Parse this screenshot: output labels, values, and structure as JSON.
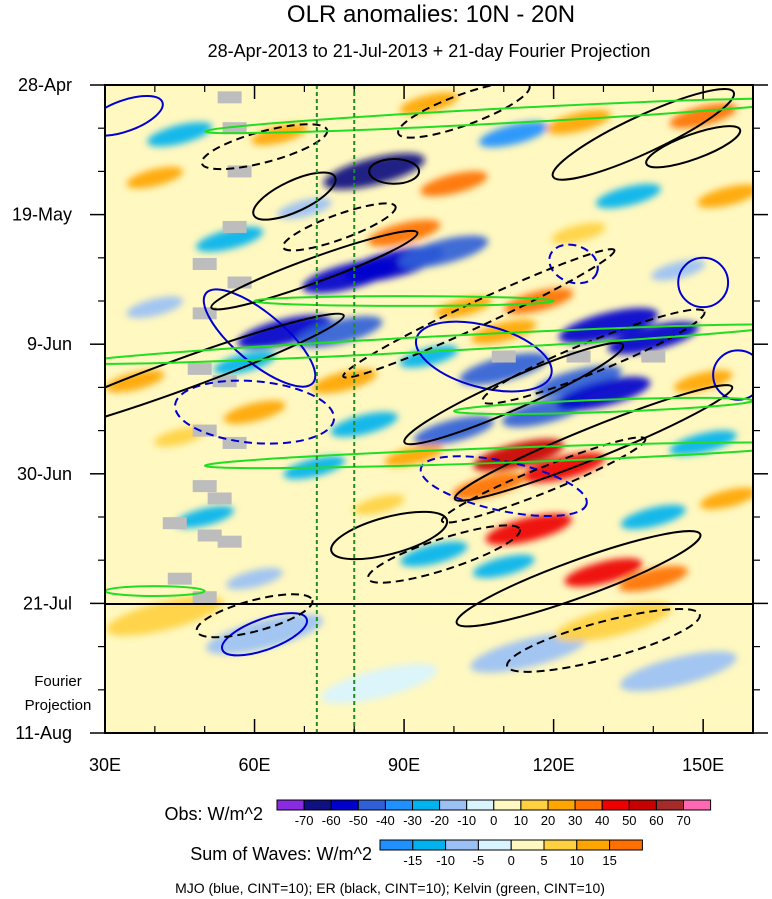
{
  "chart_data": {
    "type": "heatmap",
    "title": "OLR anomalies: 10N - 20N",
    "subtitle": "28-Apr-2013 to 21-Jul-2013 + 21-day Fourier Projection",
    "x_axis": {
      "range": [
        30,
        160
      ],
      "ticks": [
        30,
        60,
        90,
        120,
        150
      ],
      "tick_labels": [
        "30E",
        "60E",
        "90E",
        "120E",
        "150E"
      ]
    },
    "y_axis": {
      "range_days": [
        0,
        105
      ],
      "ticks_days": [
        0,
        21,
        42,
        63,
        84,
        105
      ],
      "tick_labels": [
        "28-Apr",
        "19-May",
        "9-Jun",
        "30-Jun",
        "21-Jul",
        "11-Aug"
      ],
      "projection_label_line1": "Fourier",
      "projection_label_line2": "Projection",
      "projection_start_day": 84
    },
    "reference_longitudes": [
      72.5,
      80
    ],
    "obs_legend": {
      "label": "Obs: W/m^2",
      "levels": [
        -70,
        -60,
        -50,
        -40,
        -30,
        -20,
        -10,
        0,
        10,
        20,
        30,
        40,
        50,
        60,
        70
      ],
      "colors": [
        "#8a2be2",
        "#101080",
        "#0000cd",
        "#3060d8",
        "#1e90ff",
        "#00b2ee",
        "#9ac0f5",
        "#d8f4ff",
        "#fff8c0",
        "#ffd040",
        "#ffa500",
        "#ff7000",
        "#ee0000",
        "#c80000",
        "#a52a2a",
        "#ff69b4"
      ]
    },
    "waves_legend": {
      "label": "Sum of Waves: W/m^2",
      "levels": [
        -15,
        -10,
        -5,
        0,
        5,
        10,
        15
      ],
      "colors": [
        "#1e90ff",
        "#00b2ee",
        "#9ac0f5",
        "#d8f4ff",
        "#fff8c0",
        "#ffd040",
        "#ffa500",
        "#ff7000"
      ]
    },
    "footer": "MJO (blue, CINT=10); ER (black, CINT=10); Kelvin (green, CINT=10)",
    "features": [
      {
        "type": "obs",
        "lon": 84,
        "day": 14,
        "value": -62
      },
      {
        "type": "obs",
        "lon": 88,
        "day": 29,
        "value": -60
      },
      {
        "type": "obs",
        "lon": 79,
        "day": 31,
        "value": -55
      },
      {
        "type": "obs",
        "lon": 98,
        "day": 27,
        "value": -50
      },
      {
        "type": "obs",
        "lon": 66,
        "day": 40,
        "value": -55
      },
      {
        "type": "obs",
        "lon": 77,
        "day": 40,
        "value": -48
      },
      {
        "type": "obs",
        "lon": 131,
        "day": 39,
        "value": -60
      },
      {
        "type": "obs",
        "lon": 140,
        "day": 41,
        "value": -52
      },
      {
        "type": "obs",
        "lon": 125,
        "day": 48,
        "value": -48
      },
      {
        "type": "obs",
        "lon": 110,
        "day": 46,
        "value": -50
      },
      {
        "type": "obs",
        "lon": 118,
        "day": 53,
        "value": -45
      },
      {
        "type": "obs",
        "lon": 130,
        "day": 50,
        "value": -55
      },
      {
        "type": "obs",
        "lon": 100,
        "day": 56,
        "value": -42
      },
      {
        "type": "obs",
        "lon": 82,
        "day": 55,
        "value": -30
      },
      {
        "type": "obs",
        "lon": 58,
        "day": 45,
        "value": -25
      },
      {
        "type": "obs",
        "lon": 45,
        "day": 8,
        "value": -28
      },
      {
        "type": "obs",
        "lon": 55,
        "day": 25,
        "value": -30
      },
      {
        "type": "obs",
        "lon": 150,
        "day": 58,
        "value": -30
      },
      {
        "type": "obs",
        "lon": 112,
        "day": 8,
        "value": -32
      },
      {
        "type": "obs",
        "lon": 135,
        "day": 18,
        "value": -28
      },
      {
        "type": "obs",
        "lon": 96,
        "day": 76,
        "value": -30
      },
      {
        "type": "obs",
        "lon": 140,
        "day": 70,
        "value": -28
      },
      {
        "type": "obs",
        "lon": 50,
        "day": 70,
        "value": -22
      },
      {
        "type": "obs",
        "lon": 72,
        "day": 62,
        "value": -25
      },
      {
        "type": "obs",
        "lon": 110,
        "day": 78,
        "value": -25
      },
      {
        "type": "obs",
        "lon": 95,
        "day": 44,
        "value": -22
      },
      {
        "type": "obs",
        "lon": 40,
        "day": 36,
        "value": -20
      },
      {
        "type": "obs",
        "lon": 60,
        "day": 80,
        "value": -20
      },
      {
        "type": "obs",
        "lon": 113,
        "day": 60,
        "value": 52
      },
      {
        "type": "obs",
        "lon": 122,
        "day": 62,
        "value": 45
      },
      {
        "type": "obs",
        "lon": 115,
        "day": 72,
        "value": 48
      },
      {
        "type": "obs",
        "lon": 130,
        "day": 79,
        "value": 40
      },
      {
        "type": "obs",
        "lon": 140,
        "day": 80,
        "value": 32
      },
      {
        "type": "obs",
        "lon": 107,
        "day": 65,
        "value": 35
      },
      {
        "type": "obs",
        "lon": 90,
        "day": 24,
        "value": 35
      },
      {
        "type": "obs",
        "lon": 117,
        "day": 35,
        "value": 32
      },
      {
        "type": "obs",
        "lon": 110,
        "day": 40,
        "value": 28
      },
      {
        "type": "obs",
        "lon": 100,
        "day": 16,
        "value": 30
      },
      {
        "type": "obs",
        "lon": 125,
        "day": 6,
        "value": 28
      },
      {
        "type": "obs",
        "lon": 150,
        "day": 5,
        "value": 30
      },
      {
        "type": "obs",
        "lon": 155,
        "day": 18,
        "value": 25
      },
      {
        "type": "obs",
        "lon": 78,
        "day": 48,
        "value": 28
      },
      {
        "type": "obs",
        "lon": 92,
        "day": 60,
        "value": 22
      },
      {
        "type": "obs",
        "lon": 60,
        "day": 53,
        "value": 25
      },
      {
        "type": "obs",
        "lon": 40,
        "day": 15,
        "value": 20
      },
      {
        "type": "obs",
        "lon": 36,
        "day": 48,
        "value": 22
      },
      {
        "type": "obs",
        "lon": 65,
        "day": 8,
        "value": 20
      },
      {
        "type": "obs",
        "lon": 150,
        "day": 48,
        "value": 22
      },
      {
        "type": "obs",
        "lon": 95,
        "day": 3,
        "value": 22
      },
      {
        "type": "obs",
        "lon": 155,
        "day": 67,
        "value": 20
      },
      {
        "type": "obs",
        "lon": 85,
        "day": 68,
        "value": 15
      },
      {
        "type": "obs",
        "lon": 102,
        "day": 36,
        "value": 20
      },
      {
        "type": "obs",
        "lon": 45,
        "day": 57,
        "value": 15
      },
      {
        "type": "obs",
        "lon": 125,
        "day": 24,
        "value": 18
      },
      {
        "type": "obs",
        "lon": 145,
        "day": 30,
        "value": -18
      },
      {
        "type": "obs",
        "lon": 70,
        "day": 20,
        "value": -18
      },
      {
        "type": "proj",
        "lon": 62,
        "day": 89,
        "value": -8
      },
      {
        "type": "proj",
        "lon": 115,
        "day": 92,
        "value": -6
      },
      {
        "type": "proj",
        "lon": 145,
        "day": 95,
        "value": -6
      },
      {
        "type": "proj",
        "lon": 85,
        "day": 97,
        "value": -4
      },
      {
        "type": "proj",
        "lon": 42,
        "day": 86,
        "value": 6
      },
      {
        "type": "proj",
        "lon": 132,
        "day": 87,
        "value": 5
      },
      {
        "type": "proj",
        "lon": 100,
        "day": 85,
        "value": 4
      },
      {
        "type": "proj",
        "lon": 155,
        "day": 100,
        "value": 4
      }
    ],
    "missing": [
      {
        "lon": 55,
        "day": 2
      },
      {
        "lon": 56,
        "day": 7
      },
      {
        "lon": 57,
        "day": 14
      },
      {
        "lon": 56,
        "day": 23
      },
      {
        "lon": 50,
        "day": 29
      },
      {
        "lon": 57,
        "day": 32
      },
      {
        "lon": 50,
        "day": 37
      },
      {
        "lon": 49,
        "day": 46
      },
      {
        "lon": 54,
        "day": 48
      },
      {
        "lon": 50,
        "day": 56
      },
      {
        "lon": 56,
        "day": 58
      },
      {
        "lon": 50,
        "day": 65
      },
      {
        "lon": 53,
        "day": 67
      },
      {
        "lon": 44,
        "day": 71
      },
      {
        "lon": 51,
        "day": 73
      },
      {
        "lon": 55,
        "day": 74
      },
      {
        "lon": 45,
        "day": 80
      },
      {
        "lon": 50,
        "day": 83
      },
      {
        "lon": 110,
        "day": 44
      },
      {
        "lon": 125,
        "day": 44
      },
      {
        "lon": 140,
        "day": 44
      }
    ],
    "contours": [
      {
        "wave": "MJO",
        "sign": "+",
        "cx": 34,
        "cy": 5,
        "rx": 8,
        "ry": 2.5,
        "angle": -20
      },
      {
        "wave": "MJO",
        "sign": "+",
        "cx": 61,
        "cy": 41,
        "rx": 14,
        "ry": 4,
        "angle": 40
      },
      {
        "wave": "MJO",
        "sign": "+",
        "cx": 106,
        "cy": 44,
        "rx": 14,
        "ry": 5,
        "angle": 15
      },
      {
        "wave": "MJO",
        "sign": "+",
        "cx": 157,
        "cy": 47,
        "rx": 5,
        "ry": 4,
        "angle": 0
      },
      {
        "wave": "MJO",
        "sign": "+",
        "cx": 150,
        "cy": 32,
        "rx": 5,
        "ry": 4,
        "angle": 0
      },
      {
        "wave": "MJO",
        "sign": "+",
        "cx": 62,
        "cy": 89,
        "rx": 9,
        "ry": 2.5,
        "angle": -20
      },
      {
        "wave": "MJO",
        "sign": "-",
        "cx": 60,
        "cy": 53,
        "rx": 16,
        "ry": 5,
        "angle": 5
      },
      {
        "wave": "MJO",
        "sign": "-",
        "cx": 110,
        "cy": 65,
        "rx": 17,
        "ry": 4,
        "angle": 12
      },
      {
        "wave": "MJO",
        "sign": "-",
        "cx": 124,
        "cy": 29,
        "rx": 5,
        "ry": 3,
        "angle": 20
      },
      {
        "wave": "ER",
        "sign": "+",
        "cx": 45,
        "cy": 47,
        "rx": 35,
        "ry": 2.5,
        "angle": -20
      },
      {
        "wave": "ER",
        "sign": "+",
        "cx": 72,
        "cy": 30,
        "rx": 22,
        "ry": 2,
        "angle": -20
      },
      {
        "wave": "ER",
        "sign": "+",
        "cx": 68,
        "cy": 18,
        "rx": 9,
        "ry": 2.5,
        "angle": -25
      },
      {
        "wave": "ER",
        "sign": "+",
        "cx": 88,
        "cy": 14,
        "rx": 5,
        "ry": 2,
        "angle": 0
      },
      {
        "wave": "ER",
        "sign": "+",
        "cx": 138,
        "cy": 8,
        "rx": 20,
        "ry": 3,
        "angle": -25
      },
      {
        "wave": "ER",
        "sign": "+",
        "cx": 148,
        "cy": 10,
        "rx": 10,
        "ry": 2,
        "angle": -20
      },
      {
        "wave": "ER",
        "sign": "+",
        "cx": 112,
        "cy": 50,
        "rx": 24,
        "ry": 2.5,
        "angle": -24
      },
      {
        "wave": "ER",
        "sign": "+",
        "cx": 128,
        "cy": 58,
        "rx": 30,
        "ry": 2.5,
        "angle": -22
      },
      {
        "wave": "ER",
        "sign": "+",
        "cx": 87,
        "cy": 73,
        "rx": 12,
        "ry": 3,
        "angle": -15
      },
      {
        "wave": "ER",
        "sign": "+",
        "cx": 125,
        "cy": 80,
        "rx": 26,
        "ry": 3,
        "angle": -20
      },
      {
        "wave": "ER",
        "sign": "-",
        "cx": 62,
        "cy": 10,
        "rx": 13,
        "ry": 2.5,
        "angle": -15
      },
      {
        "wave": "ER",
        "sign": "-",
        "cx": 77,
        "cy": 23,
        "rx": 12,
        "ry": 2,
        "angle": -20
      },
      {
        "wave": "ER",
        "sign": "-",
        "cx": 102,
        "cy": 4,
        "rx": 14,
        "ry": 2.5,
        "angle": -20
      },
      {
        "wave": "ER",
        "sign": "-",
        "cx": 105,
        "cy": 37,
        "rx": 30,
        "ry": 2,
        "angle": -25
      },
      {
        "wave": "ER",
        "sign": "-",
        "cx": 128,
        "cy": 44,
        "rx": 24,
        "ry": 2.5,
        "angle": -22
      },
      {
        "wave": "ER",
        "sign": "-",
        "cx": 118,
        "cy": 64,
        "rx": 22,
        "ry": 2,
        "angle": -22
      },
      {
        "wave": "ER",
        "sign": "-",
        "cx": 98,
        "cy": 76,
        "rx": 16,
        "ry": 2.5,
        "angle": -18
      },
      {
        "wave": "ER",
        "sign": "-",
        "cx": 60,
        "cy": 86,
        "rx": 12,
        "ry": 2.5,
        "angle": -15
      },
      {
        "wave": "ER",
        "sign": "-",
        "cx": 130,
        "cy": 90,
        "rx": 20,
        "ry": 3,
        "angle": -15
      },
      {
        "wave": "Kelvin",
        "sign": "+",
        "cx": 110,
        "cy": 5,
        "rx": 60,
        "ry": 1.2,
        "angle": -3
      },
      {
        "wave": "Kelvin",
        "sign": "+",
        "cx": 95,
        "cy": 42,
        "rx": 70,
        "ry": 1.2,
        "angle": -3
      },
      {
        "wave": "Kelvin",
        "sign": "+",
        "cx": 110,
        "cy": 60,
        "rx": 60,
        "ry": 1.2,
        "angle": -2
      },
      {
        "wave": "Kelvin",
        "sign": "+",
        "cx": 130,
        "cy": 52,
        "rx": 30,
        "ry": 1,
        "angle": -2
      },
      {
        "wave": "Kelvin",
        "sign": "+",
        "cx": 90,
        "cy": 35,
        "rx": 30,
        "ry": 0.8,
        "angle": 0
      },
      {
        "wave": "Kelvin",
        "sign": "+",
        "cx": 40,
        "cy": 82,
        "rx": 10,
        "ry": 0.8,
        "angle": 0
      }
    ]
  }
}
